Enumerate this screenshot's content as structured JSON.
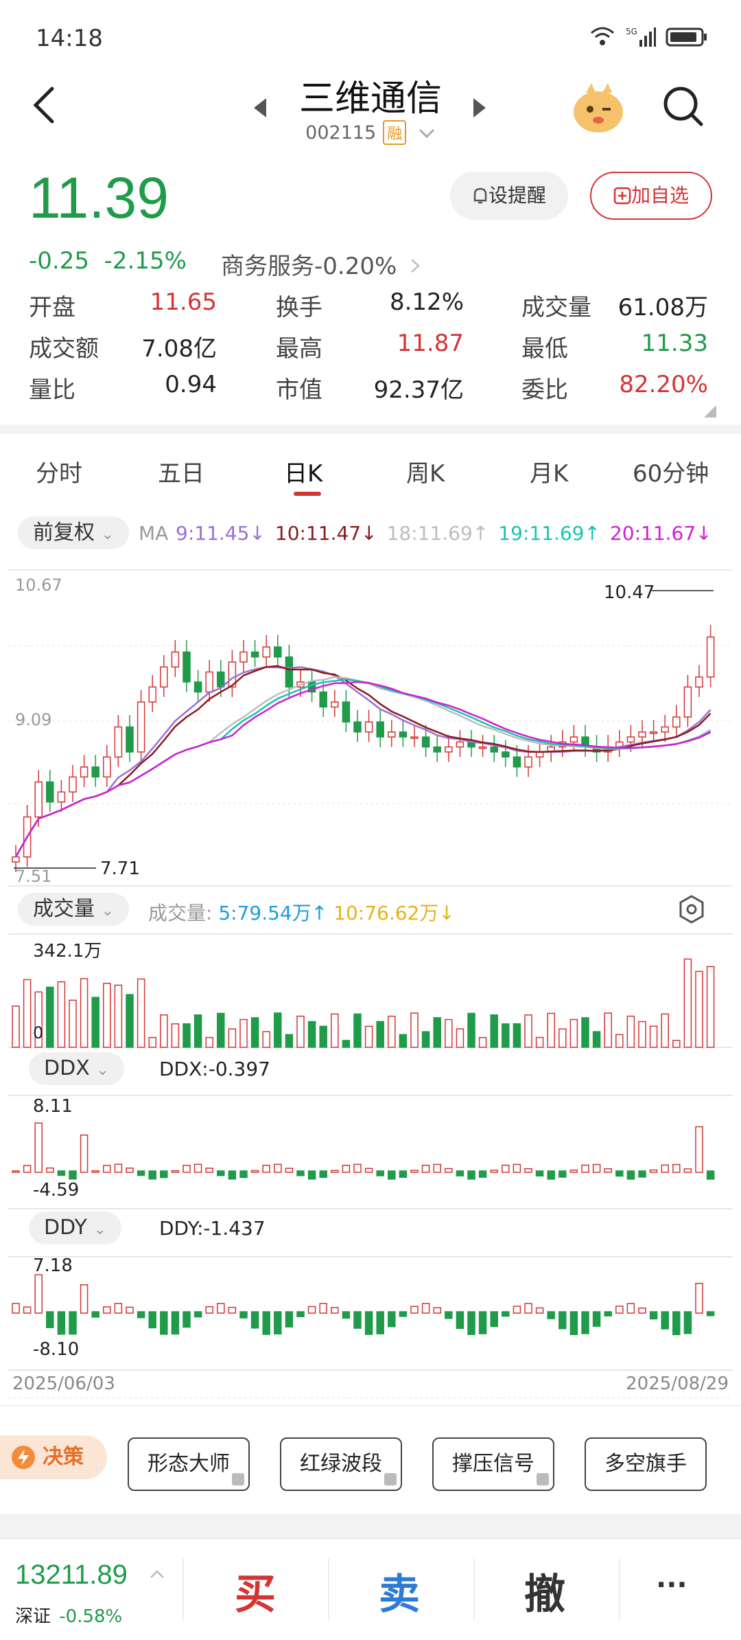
{
  "status": {
    "time": "14:18",
    "network": "5G"
  },
  "header": {
    "title": "三维通信",
    "code": "002115",
    "tag": "融"
  },
  "quote": {
    "price": "11.39",
    "change": "-0.25",
    "change_pct": "-2.15%",
    "sector": "商务服务-0.20%",
    "alert_label": "设提醒",
    "watch_label": "加自选"
  },
  "stats": [
    {
      "label": "开盘",
      "value": "11.65",
      "color": "red"
    },
    {
      "label": "换手",
      "value": "8.12%",
      "color": "dark"
    },
    {
      "label": "成交量",
      "value": "61.08万",
      "color": "dark"
    },
    {
      "label": "成交额",
      "value": "7.08亿",
      "color": "dark"
    },
    {
      "label": "最高",
      "value": "11.87",
      "color": "red"
    },
    {
      "label": "最低",
      "value": "11.33",
      "color": "green"
    },
    {
      "label": "量比",
      "value": "0.94",
      "color": "dark"
    },
    {
      "label": "市值",
      "value": "92.37亿",
      "color": "dark"
    },
    {
      "label": "委比",
      "value": "82.20%",
      "color": "red"
    }
  ],
  "tabs": [
    "分时",
    "五日",
    "日K",
    "周K",
    "月K",
    "60分钟"
  ],
  "active_tab": 2,
  "ma": {
    "adjust": "前复权",
    "prefix": "MA",
    "items": [
      {
        "text": "9:11.45↓",
        "color": "#9b6fd6"
      },
      {
        "text": "10:11.47↓",
        "color": "#8b1a1a"
      },
      {
        "text": "18:11.69↑",
        "color": "#bdbdbd"
      },
      {
        "text": "19:11.69↑",
        "color": "#18c3b5"
      },
      {
        "text": "20:11.67↓",
        "color": "#d21ed2"
      }
    ]
  },
  "kline": {
    "axis_top": "10.67",
    "axis_mid": "9.09",
    "axis_bottom": "7.51",
    "high_mark": "10.47",
    "low_mark": "7.71"
  },
  "volume": {
    "selector": "成交量",
    "label": "成交量:",
    "ma5": "5:79.54万↑",
    "ma10": "10:76.62万↓",
    "max": "342.1万",
    "zero": "0"
  },
  "ddx": {
    "selector": "DDX",
    "value": "DDX:-0.397",
    "top": "8.11",
    "bottom": "-4.59"
  },
  "ddy": {
    "selector": "DDY",
    "value": "DDY:-1.437",
    "top": "7.18",
    "bottom": "-8.10"
  },
  "dates": {
    "start": "2025/06/03",
    "end": "2025/08/29"
  },
  "tools": {
    "decision": "决策",
    "buttons": [
      "形态大师",
      "红绿波段",
      "撑压信号",
      "多空旗手"
    ]
  },
  "bottom": {
    "index_value": "13211.89",
    "index_name": "深证",
    "index_change": "-0.58%",
    "buy": "买",
    "sell": "卖",
    "cancel": "撤",
    "more": "···"
  },
  "colors": {
    "up": "#d43434",
    "down": "#1f9b4a"
  }
}
